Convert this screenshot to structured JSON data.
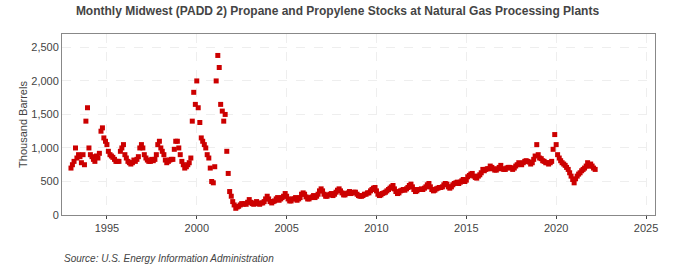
{
  "chart_data": {
    "type": "scatter",
    "title": "Monthly Midwest (PADD 2) Propane and Propylene Stocks at Natural Gas Processing Plants",
    "ylabel": "Thousand Barrels",
    "annotations": [
      "Source: U.S. Energy Information Administration"
    ],
    "color": "#cc0000",
    "marker": "square",
    "grid": true,
    "xlim": [
      1992.5,
      2025.5
    ],
    "xticks": [
      1995,
      2000,
      2005,
      2010,
      2015,
      2020,
      2025
    ],
    "ylim": [
      0,
      2700
    ],
    "yticks": [
      0,
      500,
      {
        "value": 1000,
        "label": "1,000"
      },
      {
        "value": 1500,
        "label": "1,500"
      },
      {
        "value": 2000,
        "label": "2,000"
      },
      {
        "value": 2500,
        "label": "2,500"
      }
    ],
    "x": [
      1993.0,
      1993.08,
      1993.17,
      1993.25,
      1993.33,
      1993.42,
      1993.5,
      1993.58,
      1993.67,
      1993.75,
      1993.83,
      1993.92,
      1994.0,
      1994.08,
      1994.17,
      1994.25,
      1994.33,
      1994.42,
      1994.5,
      1994.58,
      1994.67,
      1994.75,
      1994.83,
      1994.92,
      1995.0,
      1995.08,
      1995.17,
      1995.25,
      1995.33,
      1995.42,
      1995.5,
      1995.58,
      1995.67,
      1995.75,
      1995.83,
      1995.92,
      1996.0,
      1996.08,
      1996.17,
      1996.25,
      1996.33,
      1996.42,
      1996.5,
      1996.58,
      1996.67,
      1996.75,
      1996.83,
      1996.92,
      1997.0,
      1997.08,
      1997.17,
      1997.25,
      1997.33,
      1997.42,
      1997.5,
      1997.58,
      1997.67,
      1997.75,
      1997.83,
      1997.92,
      1998.0,
      1998.08,
      1998.17,
      1998.25,
      1998.33,
      1998.42,
      1998.5,
      1998.58,
      1998.67,
      1998.75,
      1998.83,
      1998.92,
      1999.0,
      1999.08,
      1999.17,
      1999.25,
      1999.33,
      1999.42,
      1999.5,
      1999.58,
      1999.67,
      1999.75,
      1999.83,
      1999.92,
      2000.0,
      2000.08,
      2000.17,
      2000.25,
      2000.33,
      2000.42,
      2000.5,
      2000.58,
      2000.67,
      2000.75,
      2000.83,
      2000.92,
      2001.0,
      2001.08,
      2001.17,
      2001.25,
      2001.33,
      2001.42,
      2001.5,
      2001.58,
      2001.67,
      2001.75,
      2001.83,
      2001.92,
      2002.0,
      2002.08,
      2002.17,
      2002.25,
      2002.33,
      2002.42,
      2002.5,
      2002.58,
      2002.67,
      2002.75,
      2002.83,
      2002.92,
      2003.0,
      2003.08,
      2003.17,
      2003.25,
      2003.33,
      2003.42,
      2003.5,
      2003.58,
      2003.67,
      2003.75,
      2003.83,
      2003.92,
      2004.0,
      2004.08,
      2004.17,
      2004.25,
      2004.33,
      2004.42,
      2004.5,
      2004.58,
      2004.67,
      2004.75,
      2004.83,
      2004.92,
      2005.0,
      2005.08,
      2005.17,
      2005.25,
      2005.33,
      2005.42,
      2005.5,
      2005.58,
      2005.67,
      2005.75,
      2005.83,
      2005.92,
      2006.0,
      2006.08,
      2006.17,
      2006.25,
      2006.33,
      2006.42,
      2006.5,
      2006.58,
      2006.67,
      2006.75,
      2006.83,
      2006.92,
      2007.0,
      2007.08,
      2007.17,
      2007.25,
      2007.33,
      2007.42,
      2007.5,
      2007.58,
      2007.67,
      2007.75,
      2007.83,
      2007.92,
      2008.0,
      2008.08,
      2008.17,
      2008.25,
      2008.33,
      2008.42,
      2008.5,
      2008.58,
      2008.67,
      2008.75,
      2008.83,
      2008.92,
      2009.0,
      2009.08,
      2009.17,
      2009.25,
      2009.33,
      2009.42,
      2009.5,
      2009.58,
      2009.67,
      2009.75,
      2009.83,
      2009.92,
      2010.0,
      2010.08,
      2010.17,
      2010.25,
      2010.33,
      2010.42,
      2010.5,
      2010.58,
      2010.67,
      2010.75,
      2010.83,
      2010.92,
      2011.0,
      2011.08,
      2011.17,
      2011.25,
      2011.33,
      2011.42,
      2011.5,
      2011.58,
      2011.67,
      2011.75,
      2011.83,
      2011.92,
      2012.0,
      2012.08,
      2012.17,
      2012.25,
      2012.33,
      2012.42,
      2012.5,
      2012.58,
      2012.67,
      2012.75,
      2012.83,
      2012.92,
      2013.0,
      2013.08,
      2013.17,
      2013.25,
      2013.33,
      2013.42,
      2013.5,
      2013.58,
      2013.67,
      2013.75,
      2013.83,
      2013.92,
      2014.0,
      2014.08,
      2014.17,
      2014.25,
      2014.33,
      2014.42,
      2014.5,
      2014.58,
      2014.67,
      2014.75,
      2014.83,
      2014.92,
      2015.0,
      2015.08,
      2015.17,
      2015.25,
      2015.33,
      2015.42,
      2015.5,
      2015.58,
      2015.67,
      2015.75,
      2015.83,
      2015.92,
      2016.0,
      2016.08,
      2016.17,
      2016.25,
      2016.33,
      2016.42,
      2016.5,
      2016.58,
      2016.67,
      2016.75,
      2016.83,
      2016.92,
      2017.0,
      2017.08,
      2017.17,
      2017.25,
      2017.33,
      2017.42,
      2017.5,
      2017.58,
      2017.67,
      2017.75,
      2017.83,
      2017.92,
      2018.0,
      2018.08,
      2018.17,
      2018.25,
      2018.33,
      2018.42,
      2018.5,
      2018.58,
      2018.67,
      2018.75,
      2018.83,
      2018.92,
      2019.0,
      2019.08,
      2019.17,
      2019.25,
      2019.33,
      2019.42,
      2019.5,
      2019.58,
      2019.67,
      2019.75,
      2019.83,
      2019.92,
      2020.0,
      2020.08,
      2020.17,
      2020.25,
      2020.33,
      2020.42,
      2020.5,
      2020.58,
      2020.67,
      2020.75,
      2020.83,
      2020.92,
      2021.0,
      2021.08,
      2021.17,
      2021.25,
      2021.33,
      2021.42,
      2021.5,
      2021.58,
      2021.67,
      2021.75,
      2021.83,
      2021.92,
      2022.0,
      2022.08,
      2022.17
    ],
    "values": [
      700,
      750,
      800,
      1000,
      850,
      900,
      870,
      780,
      900,
      750,
      1400,
      1600,
      1000,
      900,
      870,
      830,
      800,
      880,
      850,
      920,
      1250,
      1300,
      1150,
      1100,
      1050,
      950,
      900,
      880,
      860,
      830,
      800,
      800,
      800,
      950,
      1000,
      1050,
      900,
      850,
      800,
      780,
      760,
      780,
      820,
      800,
      830,
      870,
      1000,
      1050,
      1000,
      900,
      850,
      820,
      800,
      800,
      830,
      810,
      830,
      900,
      1050,
      1100,
      1000,
      950,
      900,
      820,
      780,
      800,
      820,
      830,
      830,
      980,
      1100,
      1100,
      1000,
      900,
      800,
      750,
      700,
      720,
      750,
      780,
      850,
      1400,
      1830,
      1650,
      2000,
      1600,
      1380,
      1150,
      1100,
      1050,
      1000,
      900,
      850,
      700,
      500,
      480,
      720,
      2000,
      2380,
      2200,
      1650,
      1550,
      1400,
      1500,
      950,
      620,
      350,
      280,
      200,
      150,
      100,
      120,
      130,
      150,
      170,
      160,
      170,
      160,
      190,
      230,
      190,
      170,
      160,
      180,
      200,
      170,
      160,
      180,
      180,
      200,
      240,
      280,
      240,
      200,
      180,
      200,
      210,
      240,
      260,
      220,
      240,
      260,
      280,
      320,
      280,
      240,
      210,
      210,
      240,
      240,
      260,
      220,
      240,
      260,
      310,
      330,
      310,
      270,
      240,
      240,
      260,
      270,
      290,
      260,
      280,
      310,
      360,
      390,
      360,
      310,
      280,
      280,
      300,
      310,
      320,
      290,
      310,
      340,
      370,
      390,
      360,
      330,
      300,
      300,
      320,
      330,
      350,
      320,
      330,
      340,
      340,
      310,
      290,
      280,
      280,
      290,
      310,
      310,
      330,
      330,
      360,
      380,
      400,
      410,
      360,
      310,
      290,
      300,
      320,
      330,
      340,
      360,
      380,
      400,
      420,
      440,
      390,
      350,
      320,
      330,
      360,
      370,
      380,
      370,
      390,
      410,
      440,
      460,
      420,
      380,
      350,
      360,
      380,
      380,
      390,
      380,
      400,
      420,
      450,
      470,
      420,
      380,
      360,
      370,
      390,
      400,
      410,
      410,
      420,
      450,
      470,
      460,
      420,
      400,
      420,
      450,
      470,
      480,
      490,
      470,
      490,
      510,
      530,
      500,
      520,
      570,
      590,
      610,
      620,
      580,
      560,
      550,
      580,
      600,
      630,
      680,
      660,
      680,
      690,
      690,
      730,
      710,
      690,
      670,
      670,
      690,
      710,
      740,
      690,
      680,
      680,
      700,
      710,
      710,
      700,
      680,
      700,
      730,
      750,
      780,
      760,
      750,
      780,
      800,
      810,
      800,
      790,
      760,
      780,
      830,
      880,
      1050,
      900,
      850,
      840,
      810,
      800,
      780,
      780,
      760,
      780,
      800,
      980,
      1200,
      1050,
      900,
      850,
      810,
      780,
      760,
      740,
      710,
      680,
      630,
      580,
      530,
      480,
      540,
      580,
      610,
      630,
      660,
      680,
      700,
      730,
      780,
      730,
      760,
      730,
      700,
      680
    ]
  }
}
